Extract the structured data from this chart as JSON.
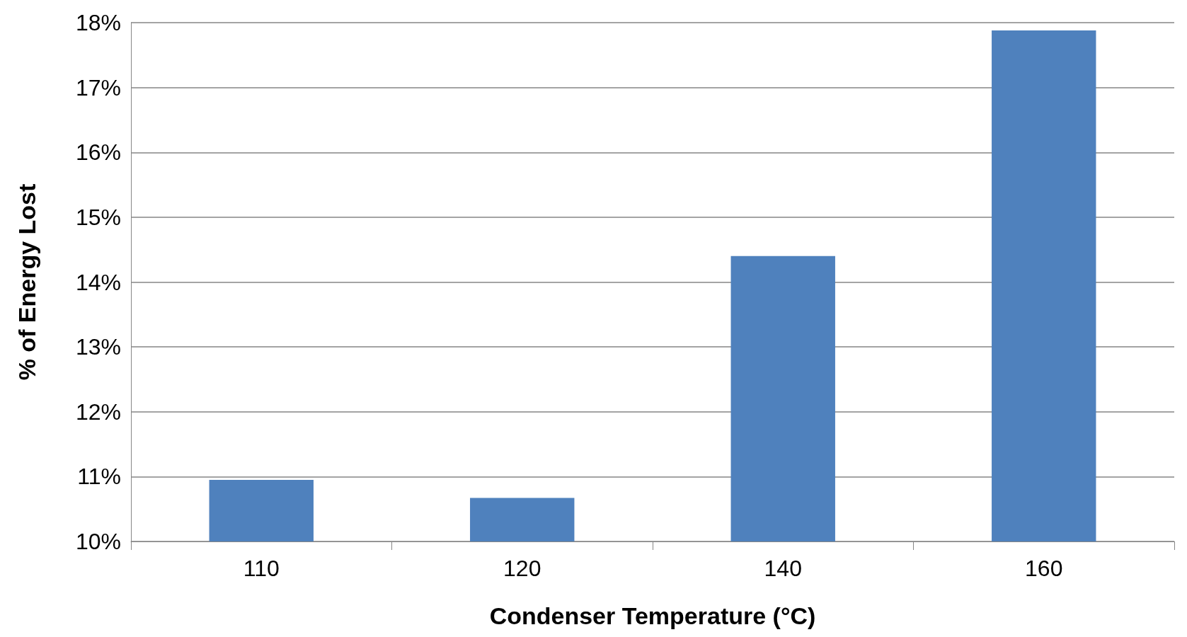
{
  "chart_data": {
    "type": "bar",
    "xlabel": "Condenser Temperature (°C)",
    "ylabel": "% of Energy Lost",
    "categories": [
      "110",
      "120",
      "140",
      "160"
    ],
    "values": [
      10.95,
      10.67,
      14.4,
      17.88
    ],
    "color": "#4f81bd",
    "ylim": [
      10,
      18
    ],
    "yticks": [
      {
        "value": 10,
        "label": "10%"
      },
      {
        "value": 11,
        "label": "11%"
      },
      {
        "value": 12,
        "label": "12%"
      },
      {
        "value": 13,
        "label": "13%"
      },
      {
        "value": 14,
        "label": "14%"
      },
      {
        "value": 15,
        "label": "15%"
      },
      {
        "value": 16,
        "label": "16%"
      },
      {
        "value": 17,
        "label": "17%"
      },
      {
        "value": 18,
        "label": "18%"
      }
    ],
    "grid": "y"
  }
}
